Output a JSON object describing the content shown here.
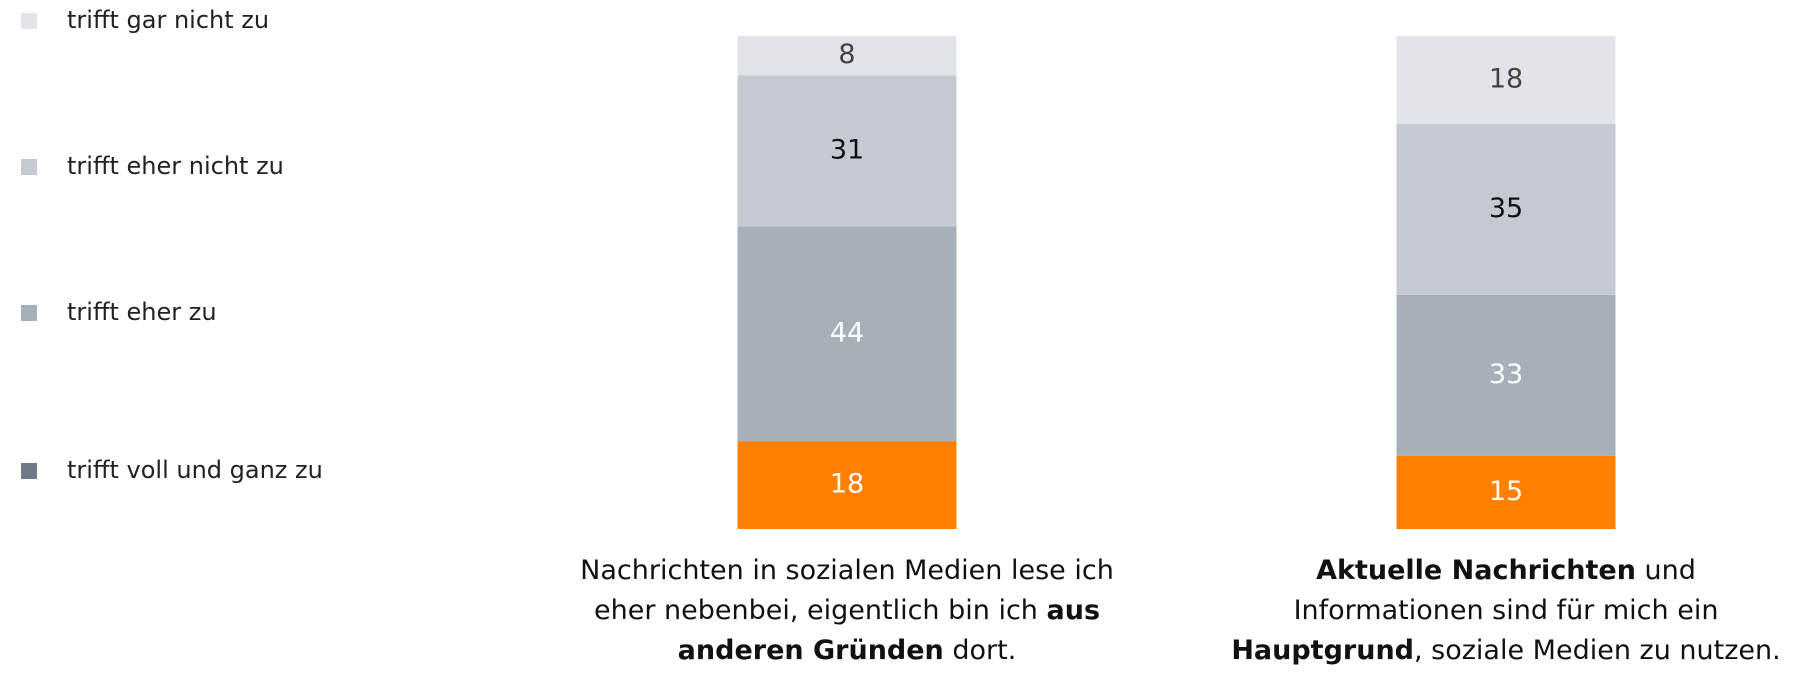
{
  "chart_data": {
    "type": "stacked_bar",
    "categories": [
      [
        [
          {
            "text": "Nachrichten in sozialen Medien lese ich",
            "bold": false
          }
        ],
        [
          {
            "text": "eher nebenbei, eigentlich bin ich ",
            "bold": false
          },
          {
            "text": "aus",
            "bold": true
          }
        ],
        [
          {
            "text": "anderen Gründen",
            "bold": true
          },
          {
            "text": " dort.",
            "bold": false
          }
        ]
      ],
      [
        [
          {
            "text": "Aktuelle Nachrichten",
            "bold": true
          },
          {
            "text": " und",
            "bold": false
          }
        ],
        [
          {
            "text": "Informationen sind für mich ein",
            "bold": false
          }
        ],
        [
          {
            "text": "Hauptgrund",
            "bold": true
          },
          {
            "text": ", soziale Medien zu nutzen.",
            "bold": false
          }
        ]
      ]
    ],
    "series": [
      {
        "name": "trifft voll und ganz zu",
        "color": "#ff7f00",
        "legend_color": "#6d7b89",
        "label_color": "#ffffff",
        "values": [
          18,
          15
        ]
      },
      {
        "name": "trifft eher zu",
        "color": "#a6b0b9",
        "legend_color": "#a6b0b9",
        "label_color": "#ffffff",
        "values": [
          44,
          33
        ]
      },
      {
        "name": "trifft eher nicht zu",
        "color": "#c5cad2",
        "legend_color": "#c5cad2",
        "label_color": "#111111",
        "values": [
          31,
          35
        ]
      },
      {
        "name": "trifft gar nicht zu",
        "color": "#e1e4e8",
        "legend_color": "#e1e4e8",
        "label_color": "#444444",
        "values": [
          8,
          18
        ]
      }
    ]
  }
}
